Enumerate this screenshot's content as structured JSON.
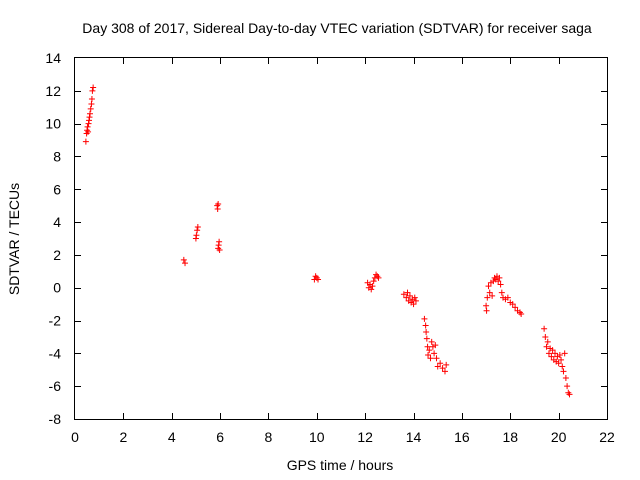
{
  "chart_data": {
    "type": "scatter",
    "title": "Day 308 of 2017, Sidereal Day-to-day VTEC variation (SDTVAR) for receiver saga",
    "xlabel": "GPS time / hours",
    "ylabel": "SDTVAR / TECUs",
    "xlim": [
      0,
      22
    ],
    "ylim": [
      -8,
      14
    ],
    "x_ticks": [
      "0",
      "2",
      "4",
      "6",
      "8",
      "10",
      "12",
      "14",
      "16",
      "18",
      "20",
      "22"
    ],
    "y_ticks": [
      "-8",
      "-6",
      "-4",
      "-2",
      "0",
      "2",
      "4",
      "6",
      "8",
      "10",
      "12",
      "14"
    ],
    "grid": false,
    "marker": "+",
    "color": "#ff0000",
    "series": [
      {
        "name": "saga",
        "points": [
          [
            0.45,
            8.9
          ],
          [
            0.48,
            9.4
          ],
          [
            0.5,
            9.6
          ],
          [
            0.52,
            9.8
          ],
          [
            0.54,
            9.5
          ],
          [
            0.56,
            10.0
          ],
          [
            0.58,
            10.2
          ],
          [
            0.6,
            10.4
          ],
          [
            0.62,
            10.6
          ],
          [
            0.65,
            10.9
          ],
          [
            0.68,
            11.2
          ],
          [
            0.7,
            11.5
          ],
          [
            0.72,
            12.0
          ],
          [
            0.75,
            12.2
          ],
          [
            4.5,
            1.7
          ],
          [
            4.55,
            1.5
          ],
          [
            5.0,
            3.0
          ],
          [
            5.02,
            3.2
          ],
          [
            5.05,
            3.5
          ],
          [
            5.08,
            3.7
          ],
          [
            5.88,
            5.0
          ],
          [
            5.9,
            4.8
          ],
          [
            5.92,
            5.1
          ],
          [
            5.92,
            2.4
          ],
          [
            5.94,
            2.6
          ],
          [
            5.96,
            2.8
          ],
          [
            5.98,
            2.3
          ],
          [
            9.9,
            0.5
          ],
          [
            9.95,
            0.7
          ],
          [
            10.0,
            0.6
          ],
          [
            10.05,
            0.5
          ],
          [
            12.1,
            0.3
          ],
          [
            12.15,
            0.0
          ],
          [
            12.2,
            0.2
          ],
          [
            12.25,
            -0.1
          ],
          [
            12.3,
            0.1
          ],
          [
            12.35,
            0.4
          ],
          [
            12.4,
            0.6
          ],
          [
            12.45,
            0.8
          ],
          [
            12.5,
            0.7
          ],
          [
            12.55,
            0.6
          ],
          [
            13.6,
            -0.4
          ],
          [
            13.7,
            -0.6
          ],
          [
            13.75,
            -0.3
          ],
          [
            13.8,
            -0.8
          ],
          [
            13.85,
            -0.5
          ],
          [
            13.9,
            -0.9
          ],
          [
            13.95,
            -0.7
          ],
          [
            14.0,
            -1.0
          ],
          [
            14.05,
            -0.6
          ],
          [
            14.1,
            -0.8
          ],
          [
            14.45,
            -1.9
          ],
          [
            14.5,
            -2.3
          ],
          [
            14.52,
            -2.7
          ],
          [
            14.55,
            -3.1
          ],
          [
            14.58,
            -3.6
          ],
          [
            14.6,
            -4.1
          ],
          [
            14.65,
            -3.8
          ],
          [
            14.7,
            -4.3
          ],
          [
            14.75,
            -3.3
          ],
          [
            14.8,
            -3.6
          ],
          [
            14.85,
            -4.0
          ],
          [
            14.9,
            -3.5
          ],
          [
            14.95,
            -4.3
          ],
          [
            15.0,
            -4.8
          ],
          [
            15.1,
            -4.6
          ],
          [
            15.2,
            -4.9
          ],
          [
            15.3,
            -5.1
          ],
          [
            15.35,
            -4.7
          ],
          [
            17.0,
            -1.1
          ],
          [
            17.02,
            -1.4
          ],
          [
            17.05,
            -0.6
          ],
          [
            17.1,
            0.1
          ],
          [
            17.15,
            -0.3
          ],
          [
            17.2,
            0.3
          ],
          [
            17.25,
            -0.5
          ],
          [
            17.3,
            0.4
          ],
          [
            17.35,
            0.6
          ],
          [
            17.4,
            0.5
          ],
          [
            17.45,
            0.7
          ],
          [
            17.5,
            0.4
          ],
          [
            17.55,
            0.6
          ],
          [
            17.6,
            0.2
          ],
          [
            17.65,
            -0.3
          ],
          [
            17.7,
            -0.6
          ],
          [
            17.8,
            -0.7
          ],
          [
            17.9,
            -0.6
          ],
          [
            18.0,
            -0.9
          ],
          [
            18.1,
            -1.0
          ],
          [
            18.2,
            -1.2
          ],
          [
            18.3,
            -1.4
          ],
          [
            18.4,
            -1.5
          ],
          [
            18.45,
            -1.6
          ],
          [
            19.4,
            -2.5
          ],
          [
            19.45,
            -3.0
          ],
          [
            19.5,
            -3.6
          ],
          [
            19.55,
            -3.3
          ],
          [
            19.6,
            -4.0
          ],
          [
            19.65,
            -3.7
          ],
          [
            19.7,
            -4.2
          ],
          [
            19.75,
            -3.8
          ],
          [
            19.8,
            -4.4
          ],
          [
            19.85,
            -4.0
          ],
          [
            19.9,
            -4.5
          ],
          [
            19.95,
            -4.2
          ],
          [
            20.0,
            -4.6
          ],
          [
            20.05,
            -4.1
          ],
          [
            20.1,
            -4.4
          ],
          [
            20.15,
            -4.8
          ],
          [
            20.2,
            -5.1
          ],
          [
            20.25,
            -4.0
          ],
          [
            20.3,
            -5.5
          ],
          [
            20.35,
            -6.0
          ],
          [
            20.4,
            -6.4
          ],
          [
            20.45,
            -6.5
          ]
        ]
      }
    ]
  }
}
